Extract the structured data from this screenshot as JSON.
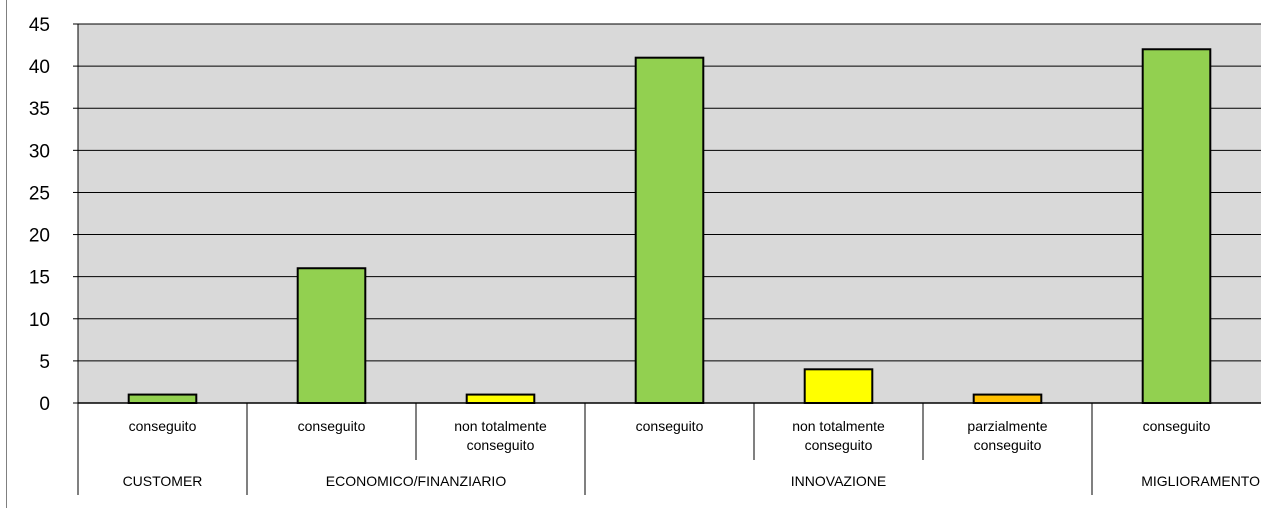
{
  "chart_data": {
    "type": "bar",
    "title": "",
    "xlabel": "",
    "ylabel": "",
    "ylim": [
      0,
      45
    ],
    "y_ticks": [
      "0",
      "5",
      "10",
      "15",
      "20",
      "25",
      "30",
      "35",
      "40",
      "45"
    ],
    "grid": true,
    "legend": "none",
    "plot_background": "#d9d9d9",
    "categories": [
      "conseguito",
      "conseguito",
      "non totalmente conseguito",
      "conseguito",
      "non totalmente conseguito",
      "parzialmente conseguito",
      "conseguito"
    ],
    "category_lines": [
      [
        "conseguito"
      ],
      [
        "conseguito"
      ],
      [
        "non totalmente",
        "conseguito"
      ],
      [
        "conseguito"
      ],
      [
        "non totalmente",
        "conseguito"
      ],
      [
        "parzialmente",
        "conseguito"
      ],
      [
        "conseguito"
      ]
    ],
    "groups": [
      {
        "label": "CUSTOMER",
        "count": 1
      },
      {
        "label": "ECONOMICO/FINANZIARIO",
        "count": 2
      },
      {
        "label": "INNOVAZIONE",
        "count": 3
      },
      {
        "label": "MIGLIORAMENTO",
        "count": 1
      }
    ],
    "values": [
      1,
      16,
      1,
      41,
      4,
      1,
      42
    ],
    "bar_colors": [
      "#92d050",
      "#92d050",
      "#ffff00",
      "#92d050",
      "#ffff00",
      "#ffc000",
      "#92d050"
    ]
  }
}
